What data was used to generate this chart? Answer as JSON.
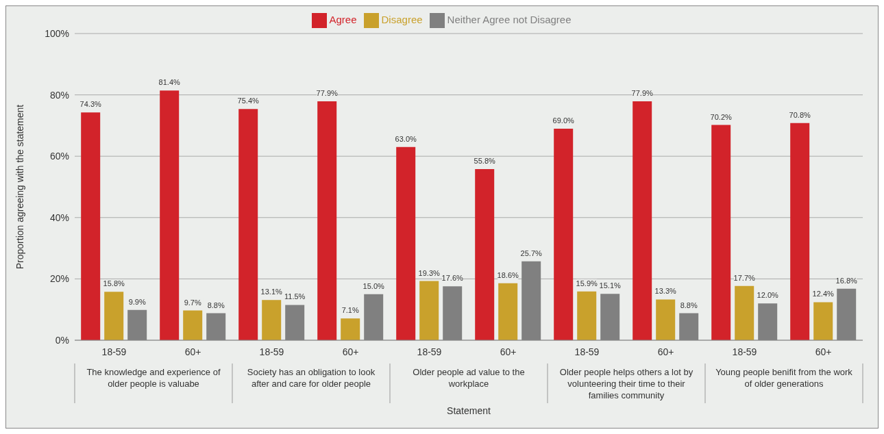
{
  "chart_data": {
    "type": "bar",
    "xlabel": "Statement",
    "ylabel": "Proportion agreeing with the statement",
    "categories": [
      "18-59",
      "60+",
      "18-59",
      "60+",
      "18-59",
      "60+",
      "18-59",
      "60+",
      "18-59",
      "60+"
    ],
    "annotations": [
      "The knowledge and experience of older people is valuabe",
      "Society has an obligation to look after and care for older people",
      "Older people ad value to the workplace",
      "Older people helps others a lot by volunteering their time to their families community",
      "Young people benifit from the work of older generations"
    ],
    "series": [
      {
        "name": "Agree",
        "color": "#d2232a",
        "values": [
          74.3,
          81.4,
          75.4,
          77.9,
          63.0,
          55.8,
          69.0,
          77.9,
          70.2,
          70.8
        ],
        "value_labels": [
          "74.3%",
          "81.4%",
          "75.4%",
          "77.9%",
          "63.0%",
          "55.8%",
          "69.0%",
          "77.9%",
          "70.2%",
          "70.8%"
        ]
      },
      {
        "name": "Disagree",
        "color": "#c9a12c",
        "values": [
          15.8,
          9.7,
          13.1,
          7.1,
          19.3,
          18.6,
          15.9,
          13.3,
          17.7,
          12.4
        ],
        "value_labels": [
          "15.8%",
          "9.7%",
          "13.1%",
          "7.1%",
          "19.3%",
          "18.6%",
          "15.9%",
          "13.3%",
          "17.7%",
          "12.4%"
        ]
      },
      {
        "name": "Neither Agree not Disagree",
        "color": "#808080",
        "values": [
          9.9,
          8.8,
          11.5,
          15.0,
          17.6,
          25.7,
          15.1,
          8.8,
          12.0,
          16.8
        ],
        "value_labels": [
          "9.9%",
          "8.8%",
          "11.5%",
          "15.0%",
          "17.6%",
          "25.7%",
          "15.1%",
          "8.8%",
          "12.0%",
          "16.8%"
        ]
      }
    ],
    "ylim": [
      0,
      100
    ],
    "yticks": [
      {
        "value": 0,
        "label": "0%"
      },
      {
        "value": 20,
        "label": "20%"
      },
      {
        "value": 40,
        "label": "40%"
      },
      {
        "value": 60,
        "label": "60%"
      },
      {
        "value": 80,
        "label": "80%"
      },
      {
        "value": 100,
        "label": "100%"
      }
    ],
    "grid": "y",
    "legend": "top"
  }
}
